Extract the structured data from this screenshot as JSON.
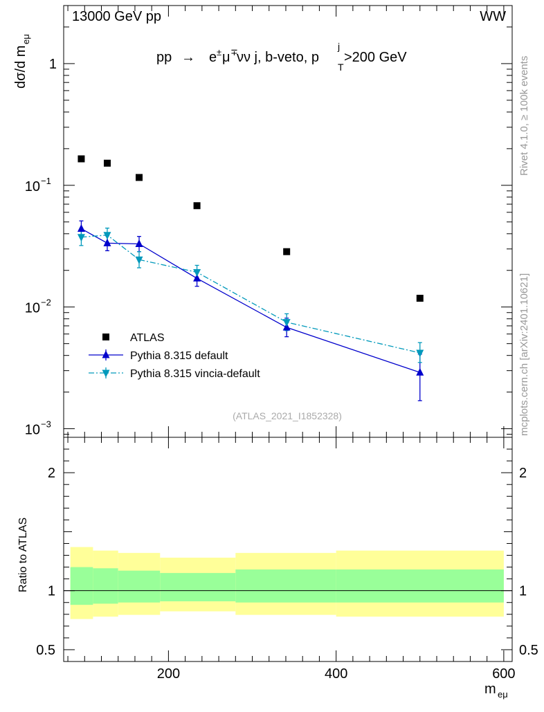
{
  "header": {
    "left": "13000 GeV pp",
    "right": "WW",
    "title_lhs": "pp",
    "title_arrow": "→",
    "title_e": "e",
    "title_pm": "±",
    "title_mu": "μ",
    "title_mp": "∓",
    "title_rest": "νν j, b-veto, p",
    "title_sup": "j",
    "title_sub": "T",
    "title_tail": ">200 GeV"
  },
  "side_labels": {
    "rivet": "Rivet 4.1.0, ≥ 100k events",
    "mcplots": "mcplots.cern.ch [arXiv:2401.10621]"
  },
  "watermark": "(ATLAS_2021_I1852328)",
  "chart_data": [
    {
      "type": "scatter",
      "panel": "main",
      "ylabel_main": "dσ/d m",
      "ylabel_sub": "eμ",
      "y_scale": "log",
      "ylim": [
        0.00085,
        3.0
      ],
      "xlim": [
        75,
        610
      ],
      "y_ticks": [
        {
          "v": 1,
          "base": "1",
          "exp": ""
        },
        {
          "v": 0.1,
          "base": "10",
          "exp": "−1"
        },
        {
          "v": 0.01,
          "base": "10",
          "exp": "−2"
        },
        {
          "v": 0.001,
          "base": "10",
          "exp": "−3"
        }
      ],
      "legend_position": "bottom-left",
      "series": [
        {
          "name": "ATLAS",
          "marker": "square",
          "color": "#000000",
          "points": [
            {
              "x": 96,
              "y": 0.165
            },
            {
              "x": 127,
              "y": 0.152
            },
            {
              "x": 165,
              "y": 0.116
            },
            {
              "x": 234,
              "y": 0.068
            },
            {
              "x": 341,
              "y": 0.0285
            },
            {
              "x": 500,
              "y": 0.0118
            }
          ]
        },
        {
          "name": "Pythia 8.315 default",
          "marker": "triangle-up",
          "color": "#0000cc",
          "line": "solid",
          "points": [
            {
              "x": 96,
              "y": 0.044,
              "lo": 0.038,
              "hi": 0.051
            },
            {
              "x": 127,
              "y": 0.0335,
              "lo": 0.029,
              "hi": 0.0385
            },
            {
              "x": 165,
              "y": 0.033,
              "lo": 0.0285,
              "hi": 0.038
            },
            {
              "x": 234,
              "y": 0.0172,
              "lo": 0.0148,
              "hi": 0.0198
            },
            {
              "x": 341,
              "y": 0.0068,
              "lo": 0.0057,
              "hi": 0.0081
            },
            {
              "x": 500,
              "y": 0.0029,
              "lo": 0.0017,
              "hi": 0.0041
            }
          ]
        },
        {
          "name": "Pythia 8.315 vincia-default",
          "marker": "triangle-down",
          "color": "#0099bb",
          "line": "dashdot",
          "points": [
            {
              "x": 96,
              "y": 0.0375,
              "lo": 0.032,
              "hi": 0.044
            },
            {
              "x": 127,
              "y": 0.039,
              "lo": 0.034,
              "hi": 0.0445
            },
            {
              "x": 165,
              "y": 0.0245,
              "lo": 0.021,
              "hi": 0.0285
            },
            {
              "x": 234,
              "y": 0.0193,
              "lo": 0.017,
              "hi": 0.022
            },
            {
              "x": 341,
              "y": 0.0075,
              "lo": 0.0064,
              "hi": 0.0088
            },
            {
              "x": 500,
              "y": 0.0042,
              "lo": 0.0035,
              "hi": 0.0051
            }
          ]
        }
      ]
    },
    {
      "type": "area",
      "panel": "ratio",
      "ylabel": "Ratio to ATLAS",
      "xlabel_main": "m",
      "xlabel_sub": "eμ",
      "ylim": [
        0.4,
        2.3
      ],
      "xlim": [
        75,
        610
      ],
      "x_ticks": [
        200,
        400,
        600
      ],
      "y_ticks": [
        0.5,
        1,
        2
      ],
      "reference": 1,
      "bins": [
        {
          "x0": 83,
          "x1": 110,
          "inner_lo": 0.88,
          "inner_hi": 1.2,
          "outer_lo": 0.76,
          "outer_hi": 1.37
        },
        {
          "x0": 110,
          "x1": 140,
          "inner_lo": 0.89,
          "inner_hi": 1.19,
          "outer_lo": 0.78,
          "outer_hi": 1.34
        },
        {
          "x0": 140,
          "x1": 190,
          "inner_lo": 0.9,
          "inner_hi": 1.17,
          "outer_lo": 0.795,
          "outer_hi": 1.32
        },
        {
          "x0": 190,
          "x1": 280,
          "inner_lo": 0.91,
          "inner_hi": 1.15,
          "outer_lo": 0.825,
          "outer_hi": 1.28
        },
        {
          "x0": 280,
          "x1": 400,
          "inner_lo": 0.9,
          "inner_hi": 1.18,
          "outer_lo": 0.795,
          "outer_hi": 1.32
        },
        {
          "x0": 400,
          "x1": 600,
          "inner_lo": 0.9,
          "inner_hi": 1.18,
          "outer_lo": 0.78,
          "outer_hi": 1.34
        }
      ],
      "band_colors": {
        "inner": "#99ff99",
        "outer": "#ffff99"
      }
    }
  ]
}
